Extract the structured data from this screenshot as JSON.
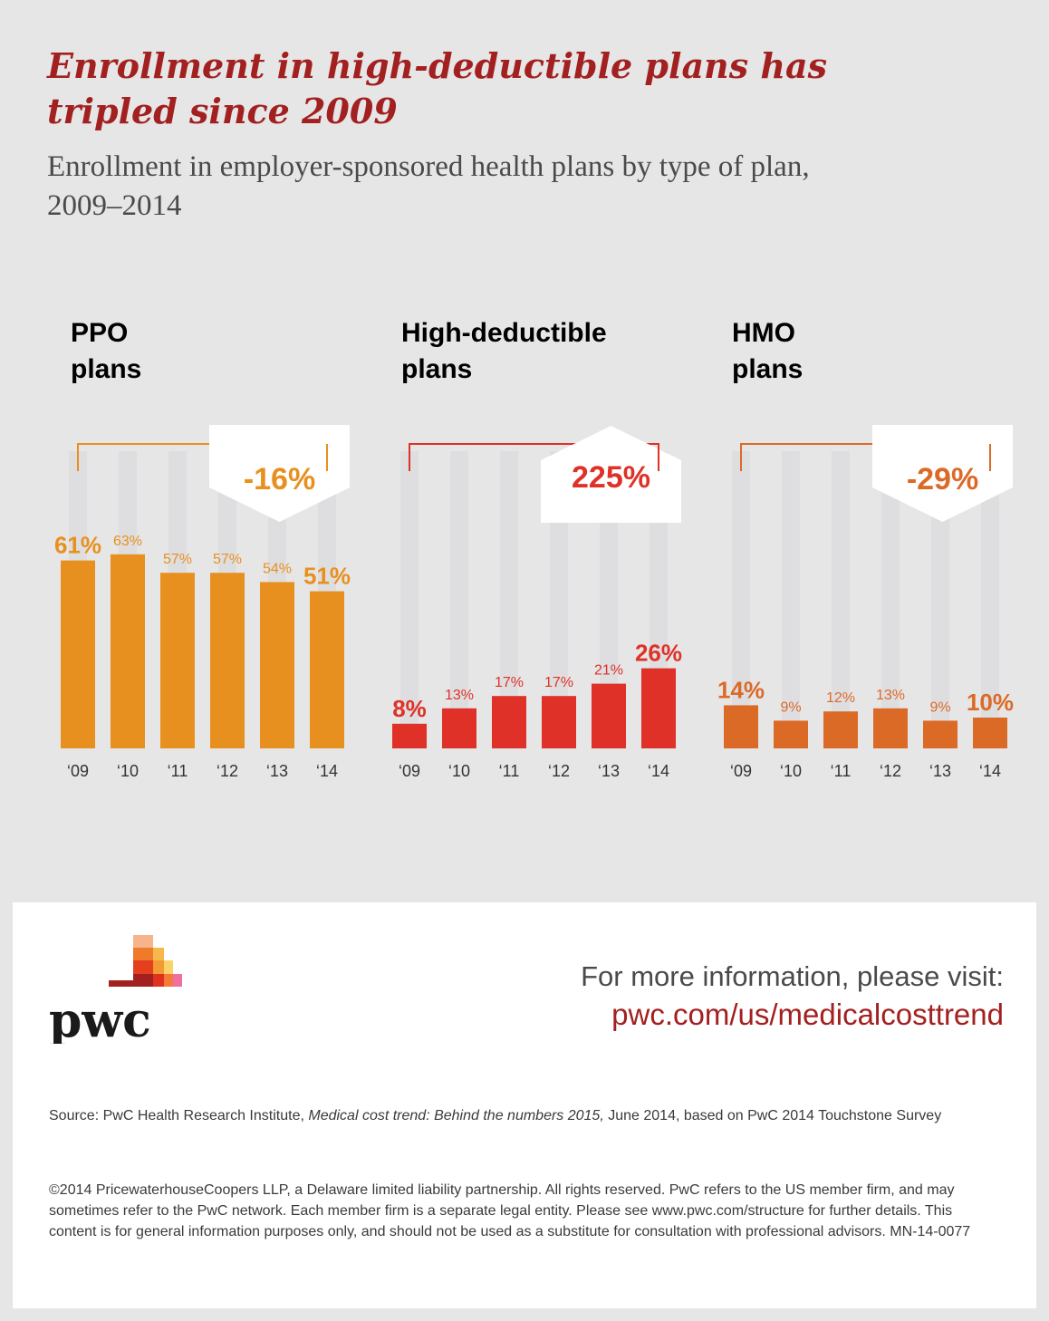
{
  "header": {
    "title": "Enrollment in high-deductible plans has tripled since 2009",
    "subtitle": "Enrollment in employer-sponsored health plans by type of plan, 2009–2014"
  },
  "chart_data": [
    {
      "type": "bar",
      "title": "PPO plans",
      "title_lines": [
        "PPO",
        "plans"
      ],
      "color": "#e8901f",
      "categories": [
        "‘09",
        "‘10",
        "‘11",
        "‘12",
        "‘13",
        "‘14"
      ],
      "values": [
        61,
        63,
        57,
        57,
        54,
        51
      ],
      "value_labels": [
        "61%",
        "63%",
        "57%",
        "57%",
        "54%",
        "51%"
      ],
      "change_label": "-16%",
      "change_direction": "down",
      "ylim": [
        0,
        100
      ],
      "grid": false
    },
    {
      "type": "bar",
      "title": "High-deductible plans",
      "title_lines": [
        "High-deductible",
        "plans"
      ],
      "color": "#df3127",
      "categories": [
        "‘09",
        "‘10",
        "‘11",
        "‘12",
        "‘13",
        "‘14"
      ],
      "values": [
        8,
        13,
        17,
        17,
        21,
        26
      ],
      "value_labels": [
        "8%",
        "13%",
        "17%",
        "17%",
        "21%",
        "26%"
      ],
      "change_label": "225%",
      "change_direction": "up",
      "ylim": [
        0,
        100
      ],
      "grid": false
    },
    {
      "type": "bar",
      "title": "HMO plans",
      "title_lines": [
        "HMO",
        "plans"
      ],
      "color": "#dc6a27",
      "categories": [
        "‘09",
        "‘10",
        "‘11",
        "‘12",
        "‘13",
        "‘14"
      ],
      "values": [
        14,
        9,
        12,
        13,
        9,
        10
      ],
      "value_labels": [
        "14%",
        "9%",
        "12%",
        "13%",
        "9%",
        "10%"
      ],
      "change_label": "-29%",
      "change_direction": "down",
      "ylim": [
        0,
        100
      ],
      "grid": false
    }
  ],
  "footer": {
    "logo_text": "pwc",
    "more_info_label": "For more information, please visit:",
    "more_info_link": "pwc.com/us/medicalcosttrend",
    "source_prefix": "Source: PwC Health Research Institute, ",
    "source_title": "Medical cost trend: Behind the numbers 2015,",
    "source_suffix": " June 2014, based on PwC 2014 Touchstone Survey",
    "copyright": "©2014 PricewaterhouseCoopers LLP, a Delaware limited liability partnership. All rights reserved. PwC refers to the US member firm, and may sometimes refer to the PwC network. Each member firm is a separate legal entity. Please see www.pwc.com/structure for further details. This content is for general information purposes only, and should not be used as a substitute for consultation with professional advisors. MN-14-0077"
  },
  "colors": {
    "background": "#e6e6e7",
    "title": "#a32020",
    "text": "#4a4a4a",
    "ppo": "#e8901f",
    "hdhp": "#df3127",
    "hmo": "#dc6a27"
  }
}
